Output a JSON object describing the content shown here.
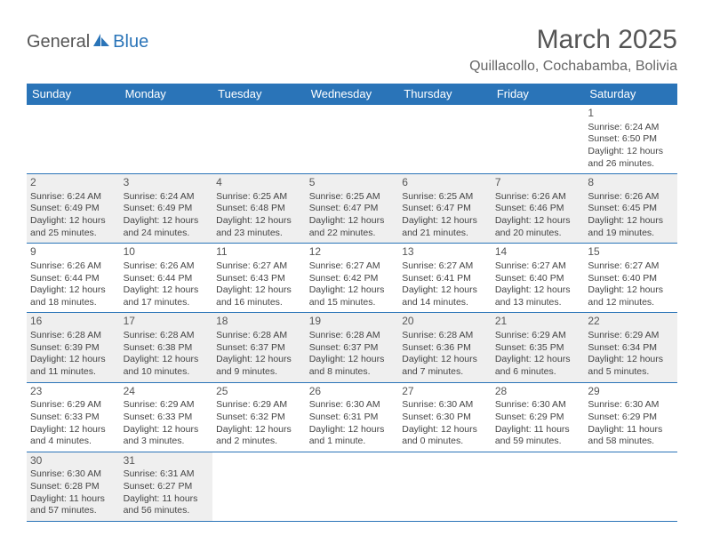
{
  "logo": {
    "part1": "General",
    "part2": "Blue"
  },
  "title": "March 2025",
  "location": "Quillacollo, Cochabamba, Bolivia",
  "colors": {
    "header_bg": "#2a74b8",
    "alt_row": "#efefef",
    "text": "#444"
  },
  "day_headers": [
    "Sunday",
    "Monday",
    "Tuesday",
    "Wednesday",
    "Thursday",
    "Friday",
    "Saturday"
  ],
  "weeks": [
    [
      null,
      null,
      null,
      null,
      null,
      null,
      {
        "n": "1",
        "sr": "Sunrise: 6:24 AM",
        "ss": "Sunset: 6:50 PM",
        "d1": "Daylight: 12 hours",
        "d2": "and 26 minutes."
      }
    ],
    [
      {
        "n": "2",
        "sr": "Sunrise: 6:24 AM",
        "ss": "Sunset: 6:49 PM",
        "d1": "Daylight: 12 hours",
        "d2": "and 25 minutes."
      },
      {
        "n": "3",
        "sr": "Sunrise: 6:24 AM",
        "ss": "Sunset: 6:49 PM",
        "d1": "Daylight: 12 hours",
        "d2": "and 24 minutes."
      },
      {
        "n": "4",
        "sr": "Sunrise: 6:25 AM",
        "ss": "Sunset: 6:48 PM",
        "d1": "Daylight: 12 hours",
        "d2": "and 23 minutes."
      },
      {
        "n": "5",
        "sr": "Sunrise: 6:25 AM",
        "ss": "Sunset: 6:47 PM",
        "d1": "Daylight: 12 hours",
        "d2": "and 22 minutes."
      },
      {
        "n": "6",
        "sr": "Sunrise: 6:25 AM",
        "ss": "Sunset: 6:47 PM",
        "d1": "Daylight: 12 hours",
        "d2": "and 21 minutes."
      },
      {
        "n": "7",
        "sr": "Sunrise: 6:26 AM",
        "ss": "Sunset: 6:46 PM",
        "d1": "Daylight: 12 hours",
        "d2": "and 20 minutes."
      },
      {
        "n": "8",
        "sr": "Sunrise: 6:26 AM",
        "ss": "Sunset: 6:45 PM",
        "d1": "Daylight: 12 hours",
        "d2": "and 19 minutes."
      }
    ],
    [
      {
        "n": "9",
        "sr": "Sunrise: 6:26 AM",
        "ss": "Sunset: 6:44 PM",
        "d1": "Daylight: 12 hours",
        "d2": "and 18 minutes."
      },
      {
        "n": "10",
        "sr": "Sunrise: 6:26 AM",
        "ss": "Sunset: 6:44 PM",
        "d1": "Daylight: 12 hours",
        "d2": "and 17 minutes."
      },
      {
        "n": "11",
        "sr": "Sunrise: 6:27 AM",
        "ss": "Sunset: 6:43 PM",
        "d1": "Daylight: 12 hours",
        "d2": "and 16 minutes."
      },
      {
        "n": "12",
        "sr": "Sunrise: 6:27 AM",
        "ss": "Sunset: 6:42 PM",
        "d1": "Daylight: 12 hours",
        "d2": "and 15 minutes."
      },
      {
        "n": "13",
        "sr": "Sunrise: 6:27 AM",
        "ss": "Sunset: 6:41 PM",
        "d1": "Daylight: 12 hours",
        "d2": "and 14 minutes."
      },
      {
        "n": "14",
        "sr": "Sunrise: 6:27 AM",
        "ss": "Sunset: 6:40 PM",
        "d1": "Daylight: 12 hours",
        "d2": "and 13 minutes."
      },
      {
        "n": "15",
        "sr": "Sunrise: 6:27 AM",
        "ss": "Sunset: 6:40 PM",
        "d1": "Daylight: 12 hours",
        "d2": "and 12 minutes."
      }
    ],
    [
      {
        "n": "16",
        "sr": "Sunrise: 6:28 AM",
        "ss": "Sunset: 6:39 PM",
        "d1": "Daylight: 12 hours",
        "d2": "and 11 minutes."
      },
      {
        "n": "17",
        "sr": "Sunrise: 6:28 AM",
        "ss": "Sunset: 6:38 PM",
        "d1": "Daylight: 12 hours",
        "d2": "and 10 minutes."
      },
      {
        "n": "18",
        "sr": "Sunrise: 6:28 AM",
        "ss": "Sunset: 6:37 PM",
        "d1": "Daylight: 12 hours",
        "d2": "and 9 minutes."
      },
      {
        "n": "19",
        "sr": "Sunrise: 6:28 AM",
        "ss": "Sunset: 6:37 PM",
        "d1": "Daylight: 12 hours",
        "d2": "and 8 minutes."
      },
      {
        "n": "20",
        "sr": "Sunrise: 6:28 AM",
        "ss": "Sunset: 6:36 PM",
        "d1": "Daylight: 12 hours",
        "d2": "and 7 minutes."
      },
      {
        "n": "21",
        "sr": "Sunrise: 6:29 AM",
        "ss": "Sunset: 6:35 PM",
        "d1": "Daylight: 12 hours",
        "d2": "and 6 minutes."
      },
      {
        "n": "22",
        "sr": "Sunrise: 6:29 AM",
        "ss": "Sunset: 6:34 PM",
        "d1": "Daylight: 12 hours",
        "d2": "and 5 minutes."
      }
    ],
    [
      {
        "n": "23",
        "sr": "Sunrise: 6:29 AM",
        "ss": "Sunset: 6:33 PM",
        "d1": "Daylight: 12 hours",
        "d2": "and 4 minutes."
      },
      {
        "n": "24",
        "sr": "Sunrise: 6:29 AM",
        "ss": "Sunset: 6:33 PM",
        "d1": "Daylight: 12 hours",
        "d2": "and 3 minutes."
      },
      {
        "n": "25",
        "sr": "Sunrise: 6:29 AM",
        "ss": "Sunset: 6:32 PM",
        "d1": "Daylight: 12 hours",
        "d2": "and 2 minutes."
      },
      {
        "n": "26",
        "sr": "Sunrise: 6:30 AM",
        "ss": "Sunset: 6:31 PM",
        "d1": "Daylight: 12 hours",
        "d2": "and 1 minute."
      },
      {
        "n": "27",
        "sr": "Sunrise: 6:30 AM",
        "ss": "Sunset: 6:30 PM",
        "d1": "Daylight: 12 hours",
        "d2": "and 0 minutes."
      },
      {
        "n": "28",
        "sr": "Sunrise: 6:30 AM",
        "ss": "Sunset: 6:29 PM",
        "d1": "Daylight: 11 hours",
        "d2": "and 59 minutes."
      },
      {
        "n": "29",
        "sr": "Sunrise: 6:30 AM",
        "ss": "Sunset: 6:29 PM",
        "d1": "Daylight: 11 hours",
        "d2": "and 58 minutes."
      }
    ],
    [
      {
        "n": "30",
        "sr": "Sunrise: 6:30 AM",
        "ss": "Sunset: 6:28 PM",
        "d1": "Daylight: 11 hours",
        "d2": "and 57 minutes."
      },
      {
        "n": "31",
        "sr": "Sunrise: 6:31 AM",
        "ss": "Sunset: 6:27 PM",
        "d1": "Daylight: 11 hours",
        "d2": "and 56 minutes."
      },
      null,
      null,
      null,
      null,
      null
    ]
  ]
}
